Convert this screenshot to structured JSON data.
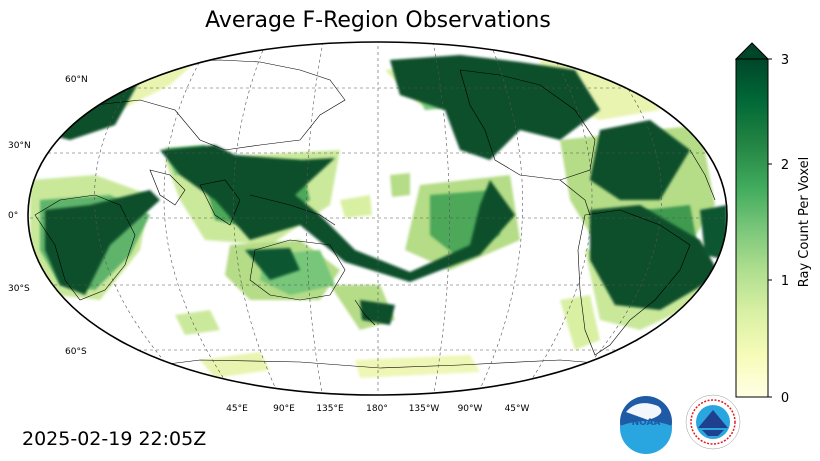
{
  "title": "Average F-Region Observations",
  "timestamp": "2025-02-19 22:05Z",
  "map": {
    "projection": "Robinson, Pacific-centered",
    "lat_labels": [
      "60°N",
      "30°N",
      "0°",
      "30°S",
      "60°S"
    ],
    "lon_labels": [
      "45°E",
      "90°E",
      "135°E",
      "180°",
      "135°W",
      "90°W",
      "45°W"
    ],
    "gridlines": "dashed grey"
  },
  "colorbar": {
    "label": "Ray Count Per Voxel",
    "ticks": [
      "0",
      "1",
      "2",
      "3"
    ],
    "range": [
      0,
      3
    ],
    "extend": "max",
    "colormap": [
      "#ffffe5",
      "#f7fcb9",
      "#d9f0a3",
      "#addd8e",
      "#78c679",
      "#41ab5d",
      "#238443",
      "#006837",
      "#004529"
    ]
  },
  "logos": {
    "noaa": "NOAA",
    "nws": "NATIONAL WEATHER SERVICE"
  },
  "colors": {
    "dark_green": "#0a4f2c",
    "mid_green": "#4da85a",
    "light_green": "#b5dc87",
    "pale_yellow": "#f1f8b9",
    "noaa_blue": "#1f5aa6",
    "nws_red": "#e31b23"
  }
}
